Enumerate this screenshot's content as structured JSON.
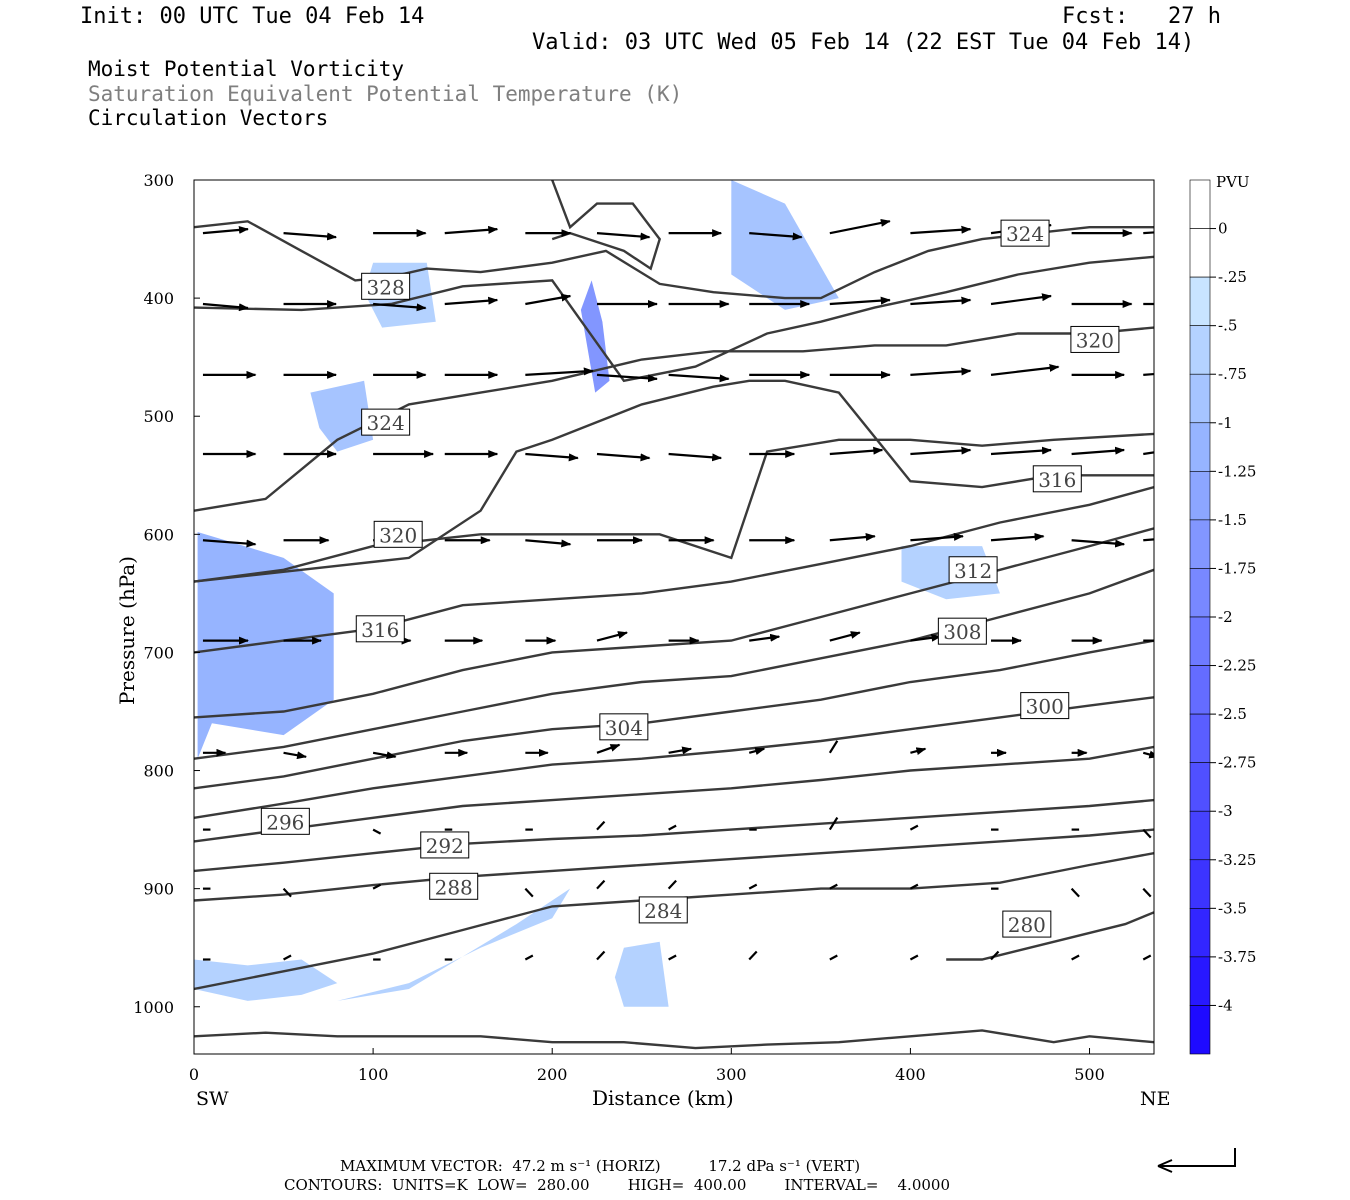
{
  "header": {
    "init": "Init: 00 UTC Tue 04 Feb 14",
    "fcst": "Fcst:   27 h",
    "valid": "Valid: 03 UTC Wed 05 Feb 14 (22 EST Tue 04 Feb 14)"
  },
  "titles": {
    "line1": "Moist Potential Vorticity",
    "line2": "Saturation Equivalent Potential Temperature (K)",
    "line3": "Circulation Vectors"
  },
  "footer": {
    "maxvec": "MAXIMUM VECTOR:  47.2 m s⁻¹ (HORIZ)          17.2 dPa s⁻¹ (VERT)",
    "contours": "CONTOURS:  UNITS=K  LOW=  280.00        HIGH=  400.00        INTERVAL=    4.0000"
  },
  "colors": {
    "frame": "#000000",
    "contour": "#3a3a3a",
    "pv_scale": [
      "#ffffff",
      "#ffffff",
      "#c8e4ff",
      "#b4d2ff",
      "#a6c4ff",
      "#96b4ff",
      "#8ca6ff",
      "#8296ff",
      "#7888ff",
      "#6e7aff",
      "#646cff",
      "#5a5eff",
      "#5050ff",
      "#4642ff",
      "#3c34ff",
      "#3226ff",
      "#2818ff",
      "#1e0aff"
    ]
  },
  "chart_data": {
    "type": "cross-section",
    "xlabel": "Distance (km)",
    "ylabel": "Pressure (hPa)",
    "xlim": [
      0,
      536
    ],
    "ylim": [
      1040,
      300
    ],
    "x_ticks": [
      "0",
      "100",
      "200",
      "300",
      "400",
      "500"
    ],
    "y_ticks": [
      "300",
      "400",
      "500",
      "600",
      "700",
      "800",
      "900",
      "1000"
    ],
    "x_end_labels": {
      "left": "SW",
      "right": "NE"
    },
    "colorbar": {
      "label": "PVU",
      "levels": [
        "0",
        "-.25",
        "-.5",
        "-.75",
        "-1",
        "-1.25",
        "-1.5",
        "-1.75",
        "-2",
        "-2.25",
        "-2.5",
        "-2.75",
        "-3",
        "-3.25",
        "-3.5",
        "-3.75",
        "-4"
      ]
    },
    "pv_shading": [
      {
        "x": [
          2,
          50,
          78,
          78,
          50,
          10,
          2
        ],
        "p": [
          598,
          620,
          650,
          740,
          770,
          760,
          790
        ],
        "level": -1.0
      },
      {
        "x": [
          120,
          160,
          200,
          210,
          180,
          120,
          80
        ],
        "p": [
          980,
          950,
          925,
          900,
          930,
          985,
          995
        ],
        "level": -0.5
      },
      {
        "x": [
          300,
          330,
          360,
          330,
          300
        ],
        "p": [
          300,
          320,
          400,
          410,
          380
        ],
        "level": -0.75
      },
      {
        "x": [
          222,
          228,
          232,
          224,
          216
        ],
        "p": [
          385,
          420,
          470,
          480,
          410
        ],
        "level": -1.5
      },
      {
        "x": [
          65,
          95,
          100,
          80,
          70
        ],
        "p": [
          480,
          470,
          520,
          530,
          510
        ],
        "level": -0.75
      },
      {
        "x": [
          100,
          130,
          135,
          105,
          95
        ],
        "p": [
          370,
          370,
          420,
          425,
          395
        ],
        "level": -0.5
      },
      {
        "x": [
          395,
          440,
          450,
          420,
          395
        ],
        "p": [
          610,
          610,
          650,
          655,
          640
        ],
        "level": -0.5
      },
      {
        "x": [
          240,
          260,
          265,
          240,
          235
        ],
        "p": [
          950,
          945,
          1000,
          1000,
          975
        ],
        "level": -0.5
      },
      {
        "x": [
          0,
          30,
          60,
          80,
          60,
          30,
          0
        ],
        "p": [
          960,
          965,
          960,
          980,
          990,
          995,
          985
        ],
        "level": -0.5
      }
    ],
    "theta_es_contours": [
      {
        "label": "324",
        "lx": 464,
        "lp": 345,
        "x": [
          0,
          30,
          60,
          90,
          110,
          130,
          160,
          200,
          230,
          260,
          290,
          330,
          350,
          380,
          410,
          440,
          470,
          500,
          536
        ],
        "p": [
          340,
          335,
          360,
          385,
          382,
          375,
          378,
          370,
          360,
          388,
          395,
          400,
          400,
          378,
          360,
          350,
          345,
          340,
          340
        ]
      },
      {
        "label": "328",
        "lx": 107,
        "lp": 390,
        "x": [
          200,
          210,
          225,
          245,
          260,
          255,
          240,
          210,
          200
        ],
        "p": [
          300,
          340,
          320,
          320,
          350,
          375,
          360,
          345,
          350
        ]
      },
      {
        "label": "320",
        "lx": 503,
        "lp": 435,
        "x": [
          0,
          60,
          110,
          150,
          200,
          240,
          280,
          320,
          350,
          380,
          420,
          460,
          500,
          536
        ],
        "p": [
          408,
          410,
          405,
          390,
          385,
          470,
          458,
          430,
          420,
          408,
          395,
          380,
          370,
          365
        ]
      },
      {
        "label": "324",
        "lx": 107,
        "lp": 505,
        "x": [
          0,
          40,
          80,
          120,
          160,
          200,
          250,
          290,
          340,
          380,
          420,
          460,
          500,
          536
        ],
        "p": [
          580,
          570,
          520,
          490,
          480,
          470,
          452,
          445,
          445,
          440,
          440,
          430,
          430,
          425
        ]
      },
      {
        "label": "316",
        "lx": 482,
        "lp": 553,
        "x": [
          0,
          60,
          120,
          160,
          180,
          200,
          250,
          290,
          310,
          330,
          360,
          400,
          440,
          480,
          536
        ],
        "p": [
          640,
          630,
          620,
          580,
          530,
          520,
          490,
          475,
          470,
          470,
          480,
          555,
          560,
          550,
          550
        ]
      },
      {
        "label": "320",
        "lx": 114,
        "lp": 600,
        "x": [
          0,
          50,
          100,
          160,
          200,
          260,
          300,
          310,
          320,
          360,
          400,
          440,
          480,
          536
        ],
        "p": [
          640,
          630,
          610,
          600,
          600,
          600,
          620,
          575,
          530,
          520,
          520,
          525,
          520,
          515
        ]
      },
      {
        "label": "316",
        "lx": 104,
        "lp": 680,
        "x": [
          0,
          50,
          100,
          150,
          200,
          250,
          300,
          350,
          400,
          450,
          500,
          536
        ],
        "p": [
          700,
          690,
          680,
          660,
          655,
          650,
          640,
          625,
          610,
          590,
          575,
          560
        ]
      },
      {
        "label": "312",
        "lx": 435,
        "lp": 630,
        "x": [
          0,
          50,
          100,
          150,
          200,
          250,
          300,
          350,
          400,
          450,
          500,
          536
        ],
        "p": [
          755,
          750,
          735,
          715,
          700,
          695,
          690,
          670,
          650,
          630,
          610,
          595
        ]
      },
      {
        "label": "308",
        "lx": 429,
        "lp": 682,
        "x": [
          0,
          50,
          100,
          150,
          200,
          250,
          300,
          350,
          400,
          450,
          500,
          536
        ],
        "p": [
          790,
          780,
          765,
          750,
          735,
          725,
          720,
          705,
          690,
          670,
          650,
          630
        ]
      },
      {
        "label": "304",
        "lx": 240,
        "lp": 763,
        "x": [
          0,
          50,
          100,
          150,
          200,
          250,
          300,
          350,
          400,
          450,
          500,
          536
        ],
        "p": [
          815,
          805,
          790,
          775,
          765,
          760,
          750,
          740,
          725,
          715,
          700,
          690
        ]
      },
      {
        "label": "300",
        "lx": 475,
        "lp": 745,
        "x": [
          0,
          50,
          100,
          150,
          200,
          250,
          300,
          350,
          400,
          450,
          500,
          536
        ],
        "p": [
          840,
          828,
          815,
          805,
          795,
          790,
          783,
          775,
          765,
          755,
          745,
          738
        ]
      },
      {
        "label": "296",
        "lx": 51,
        "lp": 843,
        "x": [
          0,
          50,
          100,
          150,
          200,
          250,
          300,
          350,
          400,
          450,
          500,
          536
        ],
        "p": [
          860,
          850,
          840,
          830,
          825,
          820,
          815,
          808,
          800,
          795,
          790,
          780
        ]
      },
      {
        "label": "292",
        "lx": 140,
        "lp": 863,
        "x": [
          0,
          50,
          100,
          150,
          200,
          250,
          300,
          350,
          400,
          450,
          500,
          536
        ],
        "p": [
          885,
          878,
          870,
          862,
          858,
          855,
          850,
          845,
          840,
          835,
          830,
          825
        ]
      },
      {
        "label": "288",
        "lx": 145,
        "lp": 898,
        "x": [
          0,
          50,
          100,
          150,
          200,
          250,
          300,
          350,
          400,
          450,
          500,
          536
        ],
        "p": [
          910,
          905,
          897,
          890,
          885,
          880,
          875,
          870,
          865,
          860,
          855,
          850
        ]
      },
      {
        "label": "284",
        "lx": 262,
        "lp": 918,
        "x": [
          0,
          50,
          100,
          150,
          200,
          250,
          300,
          350,
          400,
          450,
          500,
          536
        ],
        "p": [
          985,
          970,
          955,
          935,
          915,
          910,
          905,
          900,
          900,
          895,
          880,
          870
        ]
      },
      {
        "label": "280",
        "lx": 465,
        "lp": 930,
        "x": [
          420,
          440,
          480,
          520,
          536
        ],
        "p": [
          960,
          960,
          945,
          930,
          920
        ]
      },
      {
        "label": "",
        "lx": 0,
        "lp": 0,
        "x": [
          0,
          40,
          80,
          120,
          160,
          200,
          240,
          280,
          320,
          360,
          400,
          440,
          480,
          500,
          536
        ],
        "p": [
          1025,
          1022,
          1025,
          1025,
          1025,
          1030,
          1030,
          1035,
          1032,
          1030,
          1025,
          1020,
          1030,
          1025,
          1030
        ]
      }
    ],
    "vector_rows": [
      {
        "p": 345,
        "x": [
          5,
          50,
          100,
          140,
          185,
          225,
          265,
          310,
          355,
          400,
          445,
          490,
          530
        ],
        "u": [
          30,
          35,
          35,
          35,
          30,
          35,
          35,
          35,
          40,
          40,
          40,
          40,
          40
        ],
        "w": [
          1,
          -1,
          0,
          1,
          0,
          -1,
          0,
          -1,
          3,
          1,
          2,
          0,
          1
        ]
      },
      {
        "p": 405,
        "x": [
          5,
          50,
          100,
          140,
          185,
          225,
          265,
          310,
          355,
          400,
          445,
          490,
          530
        ],
        "u": [
          30,
          35,
          35,
          35,
          30,
          40,
          40,
          40,
          40,
          40,
          40,
          40,
          40
        ],
        "w": [
          -1,
          0,
          -1,
          1,
          2,
          0,
          0,
          0,
          1,
          1,
          2,
          0,
          0
        ]
      },
      {
        "p": 465,
        "x": [
          5,
          50,
          100,
          140,
          185,
          225,
          265,
          310,
          355,
          400,
          445,
          490,
          530
        ],
        "u": [
          35,
          35,
          35,
          35,
          45,
          40,
          40,
          40,
          40,
          40,
          45,
          35,
          35
        ],
        "w": [
          0,
          0,
          0,
          0,
          1,
          -1,
          -1,
          0,
          0,
          1,
          2,
          0,
          1
        ]
      },
      {
        "p": 532,
        "x": [
          5,
          50,
          100,
          140,
          185,
          225,
          265,
          310,
          355,
          400,
          445,
          490,
          530
        ],
        "u": [
          35,
          35,
          40,
          35,
          35,
          35,
          35,
          30,
          35,
          40,
          40,
          35,
          35
        ],
        "w": [
          0,
          0,
          0,
          0,
          -1,
          -1,
          -1,
          0,
          1,
          1,
          1,
          1,
          2
        ]
      },
      {
        "p": 605,
        "x": [
          5,
          50,
          100,
          140,
          185,
          225,
          265,
          310,
          355,
          400,
          445,
          490,
          530
        ],
        "u": [
          35,
          30,
          30,
          30,
          30,
          30,
          30,
          30,
          30,
          35,
          35,
          35,
          35
        ],
        "w": [
          -1,
          0,
          0,
          0,
          -1,
          0,
          0,
          0,
          1,
          1,
          1,
          -1,
          1
        ]
      },
      {
        "p": 690,
        "x": [
          5,
          50,
          100,
          140,
          185,
          225,
          265,
          310,
          355,
          400,
          445,
          490,
          530
        ],
        "u": [
          30,
          25,
          25,
          25,
          20,
          20,
          20,
          20,
          20,
          20,
          20,
          20,
          15
        ],
        "w": [
          0,
          0,
          0,
          0,
          0,
          2,
          0,
          1,
          2,
          1,
          0,
          0,
          0
        ]
      },
      {
        "p": 785,
        "x": [
          5,
          50,
          100,
          140,
          185,
          225,
          265,
          310,
          355,
          400,
          445,
          490,
          530
        ],
        "u": [
          15,
          15,
          15,
          15,
          15,
          15,
          15,
          10,
          5,
          10,
          10,
          10,
          10
        ],
        "w": [
          0,
          -1,
          -1,
          0,
          0,
          2,
          1,
          1,
          3,
          1,
          0,
          0,
          -1
        ]
      },
      {
        "p": 850,
        "x": [
          5,
          50,
          100,
          140,
          185,
          225,
          265,
          310,
          355,
          400,
          445,
          490,
          530
        ],
        "u": [
          5,
          5,
          5,
          5,
          5,
          5,
          5,
          5,
          5,
          5,
          5,
          5,
          5
        ],
        "w": [
          0,
          0,
          -1,
          0,
          0,
          2,
          1,
          0,
          3,
          1,
          0,
          0,
          -2
        ]
      },
      {
        "p": 900,
        "x": [
          5,
          50,
          100,
          140,
          185,
          225,
          265,
          310,
          355,
          400,
          445,
          490,
          530
        ],
        "u": [
          5,
          5,
          5,
          5,
          5,
          5,
          5,
          5,
          5,
          5,
          5,
          5,
          5
        ],
        "w": [
          0,
          -2,
          1,
          0,
          -2,
          2,
          2,
          1,
          1,
          1,
          0,
          -2,
          -2
        ]
      },
      {
        "p": 960,
        "x": [
          5,
          50,
          100,
          140,
          185,
          225,
          265,
          310,
          355,
          400,
          445,
          490,
          530
        ],
        "u": [
          5,
          5,
          5,
          5,
          5,
          5,
          5,
          5,
          5,
          5,
          5,
          5,
          5
        ],
        "w": [
          0,
          1,
          0,
          0,
          1,
          2,
          1,
          2,
          1,
          1,
          2,
          1,
          1
        ]
      }
    ]
  }
}
